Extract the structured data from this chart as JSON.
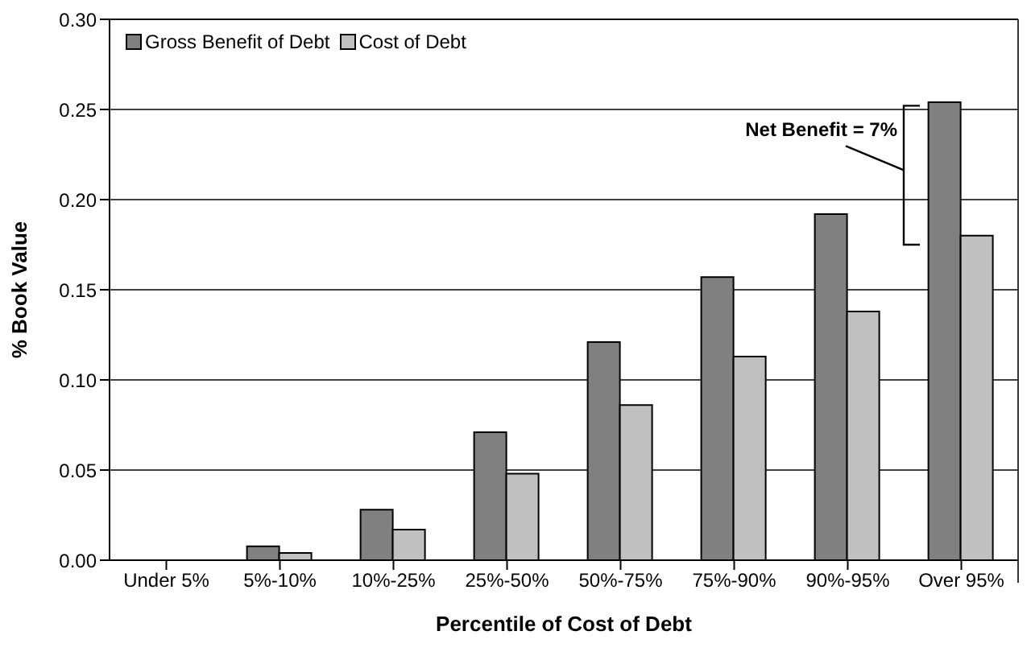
{
  "chart_data": {
    "type": "bar",
    "xlabel": "Percentile of Cost of Debt",
    "ylabel": "% Book Value",
    "categories": [
      "Under 5%",
      "5%-10%",
      "10%-25%",
      "25%-50%",
      "50%-75%",
      "75%-90%",
      "90%-95%",
      "Over 95%"
    ],
    "series": [
      {
        "name": "Gross Benefit of Debt",
        "color": "#808080",
        "values": [
          0,
          0.0077,
          0.028,
          0.071,
          0.121,
          0.157,
          0.192,
          0.254
        ]
      },
      {
        "name": "Cost of Debt",
        "color": "#c0c0c0",
        "values": [
          0,
          0.004,
          0.017,
          0.048,
          0.086,
          0.113,
          0.138,
          0.18
        ]
      }
    ],
    "ylim": [
      0,
      0.3
    ],
    "yticks": [
      {
        "value": 0,
        "label": "0.00"
      },
      {
        "value": 0.05,
        "label": "0.05"
      },
      {
        "value": 0.1,
        "label": "0.10"
      },
      {
        "value": 0.15,
        "label": "0.15"
      },
      {
        "value": 0.2,
        "label": "0.20"
      },
      {
        "value": 0.25,
        "label": "0.25"
      },
      {
        "value": 0.3,
        "label": "0.30"
      }
    ],
    "grid": "y",
    "legend": "top left",
    "annotations": [
      "Net Benefit = 7%"
    ]
  }
}
